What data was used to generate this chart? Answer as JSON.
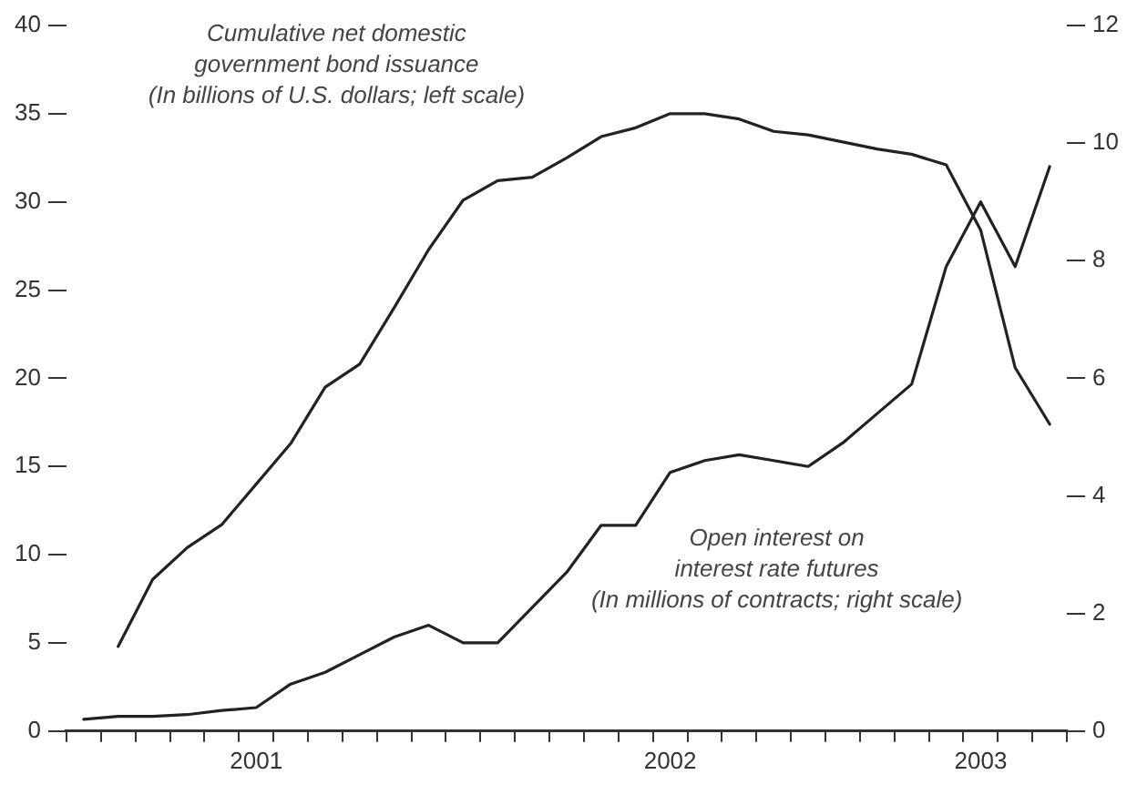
{
  "chart_data": {
    "type": "line",
    "categories": [
      null,
      null,
      null,
      null,
      null,
      "2001",
      null,
      null,
      null,
      null,
      null,
      null,
      null,
      null,
      null,
      null,
      null,
      "2002",
      null,
      null,
      null,
      null,
      null,
      null,
      null,
      null,
      "2003",
      null,
      null
    ],
    "series": [
      {
        "color": "#222222",
        "values": [
          null,
          4.8,
          8.6,
          10.4,
          11.7,
          14.0,
          16.3,
          19.5,
          20.8,
          24.0,
          27.3,
          30.1,
          31.2,
          31.4,
          32.5,
          33.7,
          34.2,
          35.0,
          35.0,
          34.7,
          34.0,
          33.8,
          33.4,
          33.0,
          32.7,
          32.1,
          28.4,
          20.6,
          17.4
        ]
      },
      {
        "color": "#222222",
        "axis": "y2",
        "values": [
          0.2,
          0.25,
          0.25,
          0.28,
          0.35,
          0.4,
          0.8,
          1.0,
          1.3,
          1.6,
          1.8,
          1.5,
          1.5,
          2.1,
          2.7,
          3.5,
          3.5,
          4.4,
          4.6,
          4.7,
          4.6,
          4.5,
          4.9,
          5.4,
          5.9,
          7.9,
          9.0,
          7.9,
          9.6
        ]
      }
    ],
    "ylim": [
      0,
      40
    ],
    "yticks": [
      0,
      5,
      10,
      15,
      20,
      25,
      30,
      35,
      40
    ],
    "y2lim": [
      0,
      12
    ],
    "y2ticks": [
      0,
      2,
      4,
      6,
      8,
      10,
      12
    ],
    "grid": false,
    "legend": false,
    "marker": "none",
    "line_style": "solid",
    "annotations": [
      "Cumulative net domestic\ngovernment bond issuance\n(In billions of U.S. dollars; left scale)",
      "Open interest on\ninterest rate futures\n(In millions of contracts; right scale)"
    ]
  }
}
